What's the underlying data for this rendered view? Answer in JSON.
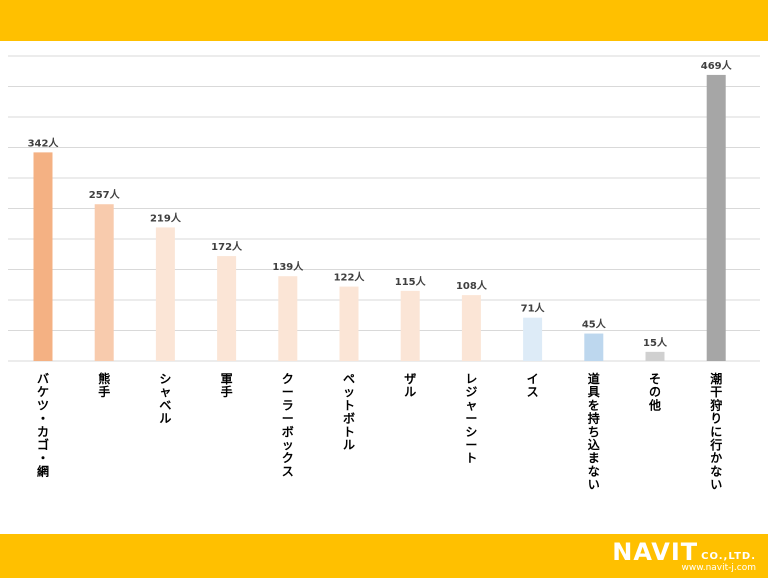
{
  "chart_data": {
    "type": "bar",
    "categories": [
      "バケツ・カゴ・網",
      "熊手",
      "シャベル",
      "軍手",
      "クーラーボックス",
      "ペットボトル",
      "ザル",
      "レジャーシート",
      "イス",
      "道具を持ち込まない",
      "その他",
      "潮干狩りに行かない"
    ],
    "values": [
      342,
      257,
      219,
      172,
      139,
      122,
      115,
      108,
      71,
      45,
      15,
      469
    ],
    "value_labels": [
      "342人",
      "257人",
      "219人",
      "172人",
      "139人",
      "122人",
      "115人",
      "108人",
      "71人",
      "45人",
      "15人",
      "469人"
    ],
    "colors": [
      "#f4b183",
      "#f8cbad",
      "#fbe5d6",
      "#fbe5d6",
      "#fbe5d6",
      "#fbe5d6",
      "#fbe5d6",
      "#fbe5d6",
      "#ddebf7",
      "#bdd7ee",
      "#d0d0d0",
      "#a6a6a6"
    ],
    "ylim": [
      0,
      500
    ],
    "grid": true,
    "title": "",
    "xlabel": "",
    "ylabel": ""
  },
  "logo": {
    "brand": "NAVIT",
    "suffix": "CO.,LTD.",
    "url": "www.navit-j.com"
  },
  "colors": {
    "band": "#ffc000",
    "grid": "#d9d9d9",
    "label_text": "#404040"
  }
}
